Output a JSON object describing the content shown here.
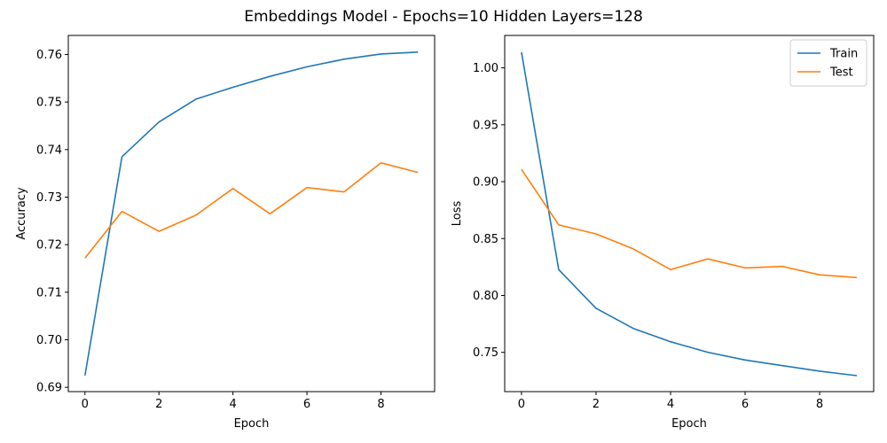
{
  "figure": {
    "title": "Embeddings Model - Epochs=10 Hidden Layers=128"
  },
  "chart_data": [
    {
      "type": "line",
      "title": "",
      "xlabel": "Epoch",
      "ylabel": "Accuracy",
      "x": [
        0,
        1,
        2,
        3,
        4,
        5,
        6,
        7,
        8,
        9
      ],
      "xlim": [
        -0.45,
        9.45
      ],
      "ylim": [
        0.6891,
        0.764
      ],
      "xticks": [
        0,
        2,
        4,
        6,
        8
      ],
      "yticks": [
        0.69,
        0.7,
        0.71,
        0.72,
        0.73,
        0.74,
        0.75,
        0.76
      ],
      "ytick_labels": [
        "0.69",
        "0.70",
        "0.71",
        "0.72",
        "0.73",
        "0.74",
        "0.75",
        "0.76"
      ],
      "legend": false,
      "series": [
        {
          "color": "#1f77b4",
          "values": [
            0.6925,
            0.7385,
            0.7458,
            0.7506,
            0.7531,
            0.7554,
            0.7574,
            0.759,
            0.7601,
            0.7605
          ]
        },
        {
          "color": "#ff7f0e",
          "values": [
            0.7172,
            0.727,
            0.7228,
            0.7262,
            0.7318,
            0.7265,
            0.732,
            0.7311,
            0.7372,
            0.7352
          ]
        }
      ]
    },
    {
      "type": "line",
      "title": "",
      "xlabel": "Epoch",
      "ylabel": "Loss",
      "x": [
        0,
        1,
        2,
        3,
        4,
        5,
        6,
        7,
        8,
        9
      ],
      "xlim": [
        -0.45,
        9.45
      ],
      "ylim": [
        0.7155,
        1.0285
      ],
      "xticks": [
        0,
        2,
        4,
        6,
        8
      ],
      "yticks": [
        0.75,
        0.8,
        0.85,
        0.9,
        0.95,
        1.0
      ],
      "ytick_labels": [
        "0.75",
        "0.80",
        "0.85",
        "0.90",
        "0.95",
        "1.00"
      ],
      "legend": true,
      "legend_position": "top-right",
      "series": [
        {
          "name": "Train",
          "color": "#1f77b4",
          "values": [
            1.0138,
            0.8227,
            0.7888,
            0.771,
            0.7593,
            0.7501,
            0.7433,
            0.7383,
            0.7335,
            0.7295
          ]
        },
        {
          "name": "Test",
          "color": "#ff7f0e",
          "values": [
            0.9108,
            0.862,
            0.8541,
            0.8409,
            0.8227,
            0.8321,
            0.8242,
            0.8255,
            0.8181,
            0.8157
          ]
        }
      ]
    }
  ]
}
